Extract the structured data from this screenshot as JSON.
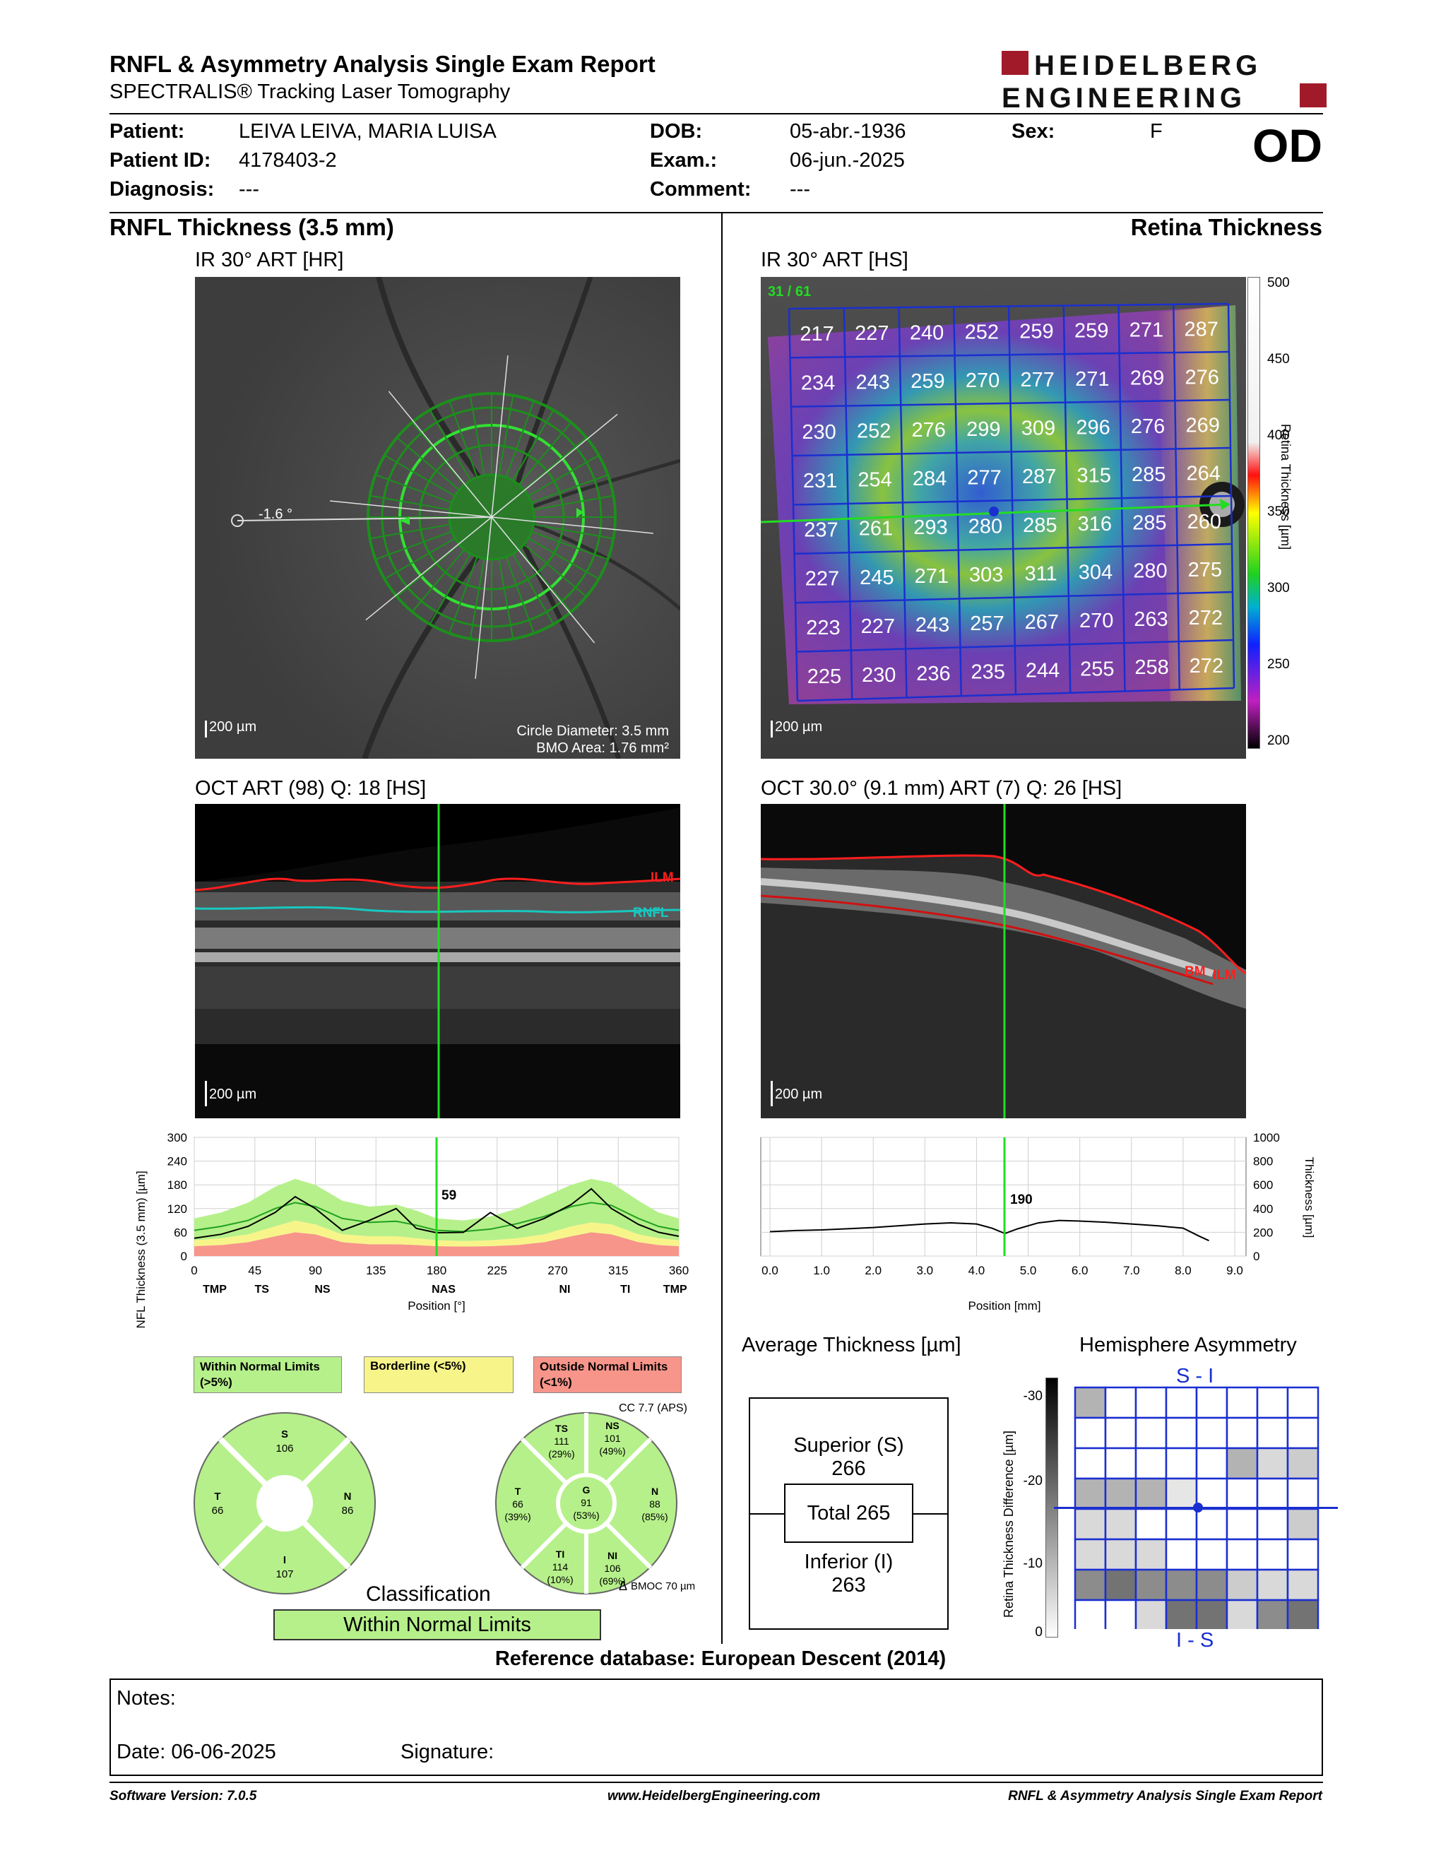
{
  "header": {
    "title": "RNFL & Asymmetry Analysis Single Exam Report",
    "subtitle": "SPECTRALIS® Tracking Laser Tomography",
    "logo_line1": "HEIDELBERG",
    "logo_line2": "ENGINEERING"
  },
  "patient": {
    "patient_label": "Patient:",
    "patient_value": "LEIVA LEIVA, MARIA LUISA",
    "id_label": "Patient ID:",
    "id_value": "4178403-2",
    "diagnosis_label": "Diagnosis:",
    "diagnosis_value": "---",
    "dob_label": "DOB:",
    "dob_value": "05-abr.-1936",
    "exam_label": "Exam.:",
    "exam_value": "06-jun.-2025",
    "comment_label": "Comment:",
    "comment_value": "---",
    "sex_label": "Sex:",
    "sex_value": "F",
    "eye": "OD"
  },
  "rnfl": {
    "section_title": "RNFL Thickness (3.5 mm)",
    "ir_caption": "IR 30° ART [HR]",
    "angle_label": "-1.6 °",
    "scale_label": "200 µm",
    "circle_diameter": "Circle Diameter: 3.5 mm",
    "bmo_area": "BMO Area: 1.76 mm²",
    "oct_caption": "OCT ART (98) Q: 18 [HS]",
    "oct_scale": "200 µm",
    "ilm_label": "ILM",
    "rnfl_label": "RNFL",
    "plot_ylabel": "RNFL Thickness (3.5 mm) [µm]",
    "plot_xlabel": "Position [°]",
    "plot_cursor_value": "59",
    "plot_yticks": [
      "300",
      "240",
      "180",
      "120",
      "60",
      "0"
    ],
    "plot_xticks": [
      "0",
      "45",
      "90",
      "135",
      "180",
      "225",
      "270",
      "315",
      "360"
    ],
    "plot_sectors": [
      "TMP",
      "TS",
      "NS",
      "NAS",
      "NI",
      "TI",
      "TMP"
    ],
    "legend_wnl": "Within Normal Limits (>5%)",
    "legend_bl": "Borderline (<5%)",
    "legend_onl": "Outside Normal Limits (<1%)",
    "cc_label": "CC 7.7 (APS)",
    "bmo_label": "BMOC 70 µm",
    "delta_symbol": "Δ",
    "pie4": {
      "S": "106",
      "T": "66",
      "N": "86",
      "I": "107"
    },
    "pie6": {
      "TS": {
        "name": "TS",
        "val": "111",
        "pct": "(29%)"
      },
      "NS": {
        "name": "NS",
        "val": "101",
        "pct": "(49%)"
      },
      "T": {
        "name": "T",
        "val": "66",
        "pct": "(39%)"
      },
      "G": {
        "name": "G",
        "val": "91",
        "pct": "(53%)"
      },
      "N": {
        "name": "N",
        "val": "88",
        "pct": "(85%)"
      },
      "TI": {
        "name": "TI",
        "val": "114",
        "pct": "(10%)"
      },
      "NI": {
        "name": "NI",
        "val": "106",
        "pct": "(69%)"
      }
    },
    "classification_title": "Classification",
    "classification_value": "Within Normal Limits"
  },
  "retina": {
    "section_title": "Retina Thickness",
    "ir_caption": "IR 30° ART [HS]",
    "frame_label": "31 / 61",
    "scale_label": "200 µm",
    "colorbar_ticks": [
      "500",
      "450",
      "400",
      "350",
      "300",
      "250",
      "200"
    ],
    "colorbar_label": "Retina Thickness [µm]",
    "grid": [
      [
        "217",
        "227",
        "240",
        "252",
        "259",
        "259",
        "271",
        "287"
      ],
      [
        "234",
        "243",
        "259",
        "270",
        "277",
        "271",
        "269",
        "276"
      ],
      [
        "230",
        "252",
        "276",
        "299",
        "309",
        "296",
        "276",
        "269"
      ],
      [
        "231",
        "254",
        "284",
        "277",
        "287",
        "315",
        "285",
        "264"
      ],
      [
        "237",
        "261",
        "293",
        "280",
        "285",
        "316",
        "285",
        "260"
      ],
      [
        "227",
        "245",
        "271",
        "303",
        "311",
        "304",
        "280",
        "275"
      ],
      [
        "223",
        "227",
        "243",
        "257",
        "267",
        "270",
        "263",
        "272"
      ],
      [
        "225",
        "230",
        "236",
        "235",
        "244",
        "255",
        "258",
        "272"
      ]
    ],
    "oct_caption": "OCT 30.0° (9.1 mm) ART (7) Q: 26 [HS]",
    "oct_scale": "200 µm",
    "bm_label": "BM",
    "ilm_label": "ILM",
    "plot_ylabel": "Thickness [µm]",
    "plot_xlabel": "Position [mm]",
    "plot_cursor_value": "190",
    "plot_yticks": [
      "1000",
      "800",
      "600",
      "400",
      "200",
      "0"
    ],
    "plot_xticks": [
      "0.0",
      "1.0",
      "2.0",
      "3.0",
      "4.0",
      "5.0",
      "6.0",
      "7.0",
      "8.0",
      "9.0"
    ],
    "avg_title": "Average Thickness [µm]",
    "superior_label": "Superior (S)",
    "superior_value": "266",
    "total_label": "Total 265",
    "inferior_label": "Inferior (I)",
    "inferior_value": "263",
    "asym_title": "Hemisphere Asymmetry",
    "asym_top": "S - I",
    "asym_bottom": "I - S",
    "asym_ylabel": "Retina Thickness Difference [µm]",
    "asym_ticks": [
      "-30",
      "-20",
      "-10",
      "0"
    ]
  },
  "reference_db": "Reference database: European Descent (2014)",
  "notes": {
    "notes_label": "Notes:",
    "date_label": "Date: 06-06-2025",
    "signature_label": "Signature:"
  },
  "footer": {
    "software": "Software Version: 7.0.5",
    "website": "www.HeidelbergEngineering.com",
    "report": "RNFL & Asymmetry Analysis Single Exam Report"
  },
  "colors": {
    "wnl_green": "#b6f08a",
    "borderline_yellow": "#f7f58a",
    "onl_red": "#f7958a",
    "grid_blue": "#1a2fd0",
    "scan_green": "#22dd22"
  }
}
